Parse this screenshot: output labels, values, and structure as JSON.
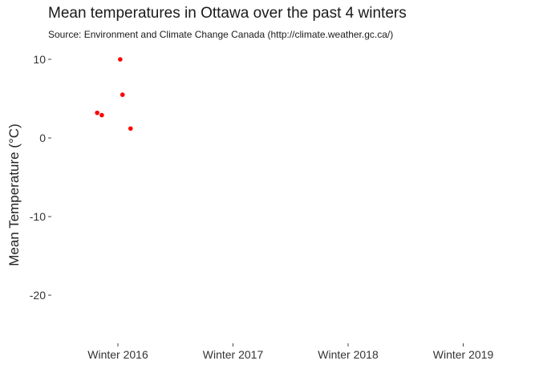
{
  "chart_data": {
    "type": "scatter",
    "title": "Mean temperatures in Ottawa over the past 4 winters",
    "subtitle": "Source: Environment and Climate Change Canada (http://climate.weather.gc.ca/)",
    "xlabel": "",
    "ylabel": "Mean Temperature (°C)",
    "categories": [
      "Winter 2016",
      "Winter 2017",
      "Winter 2018",
      "Winter 2019"
    ],
    "yticks": [
      -20,
      -10,
      0,
      10
    ],
    "ylim": [
      -26,
      11.5
    ],
    "grid": false,
    "point_color": "#ff0000",
    "points": [
      {
        "x": 0.82,
        "y": 3.2
      },
      {
        "x": 0.86,
        "y": 2.9
      },
      {
        "x": 1.02,
        "y": 10.0
      },
      {
        "x": 1.04,
        "y": 5.5
      },
      {
        "x": 1.11,
        "y": 1.2
      }
    ]
  }
}
